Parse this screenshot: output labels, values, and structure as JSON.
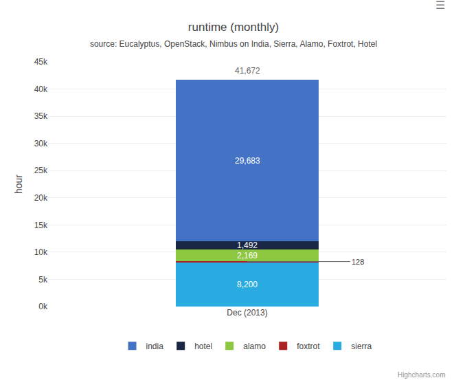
{
  "chart_data": {
    "type": "bar",
    "stacked": true,
    "title": "runtime (monthly)",
    "subtitle": "source: Eucalyptus, OpenStack, Nimbus on India, Sierra, Alamo, Foxtrot, Hotel",
    "ylabel": "hour",
    "categories": [
      "Dec (2013)"
    ],
    "series": [
      {
        "name": "sierra",
        "color": "#29ABE2",
        "values": [
          8200
        ],
        "value_labels": [
          "8,200"
        ]
      },
      {
        "name": "foxtrot",
        "color": "#AA2222",
        "values": [
          128
        ],
        "value_labels": [
          "128"
        ]
      },
      {
        "name": "alamo",
        "color": "#8DC63F",
        "values": [
          2169
        ],
        "value_labels": [
          "2,169"
        ]
      },
      {
        "name": "hotel",
        "color": "#1A2744",
        "values": [
          1492
        ],
        "value_labels": [
          "1,492"
        ]
      },
      {
        "name": "india",
        "color": "#4472C4",
        "values": [
          29683
        ],
        "value_labels": [
          "29,683"
        ]
      }
    ],
    "totals": [
      41672
    ],
    "total_labels": [
      "41,672"
    ],
    "ylim": [
      0,
      45000
    ],
    "yticks": [
      {
        "value": 0,
        "label": "0k"
      },
      {
        "value": 5000,
        "label": "5k"
      },
      {
        "value": 10000,
        "label": "10k"
      },
      {
        "value": 15000,
        "label": "15k"
      },
      {
        "value": 20000,
        "label": "20k"
      },
      {
        "value": 25000,
        "label": "25k"
      },
      {
        "value": 30000,
        "label": "30k"
      },
      {
        "value": 35000,
        "label": "35k"
      },
      {
        "value": 40000,
        "label": "40k"
      },
      {
        "value": 45000,
        "label": "45k"
      }
    ],
    "grid": true,
    "legend": "bottom",
    "data_labels": true,
    "annotations": [
      "Highcharts.com",
      "☰"
    ]
  }
}
